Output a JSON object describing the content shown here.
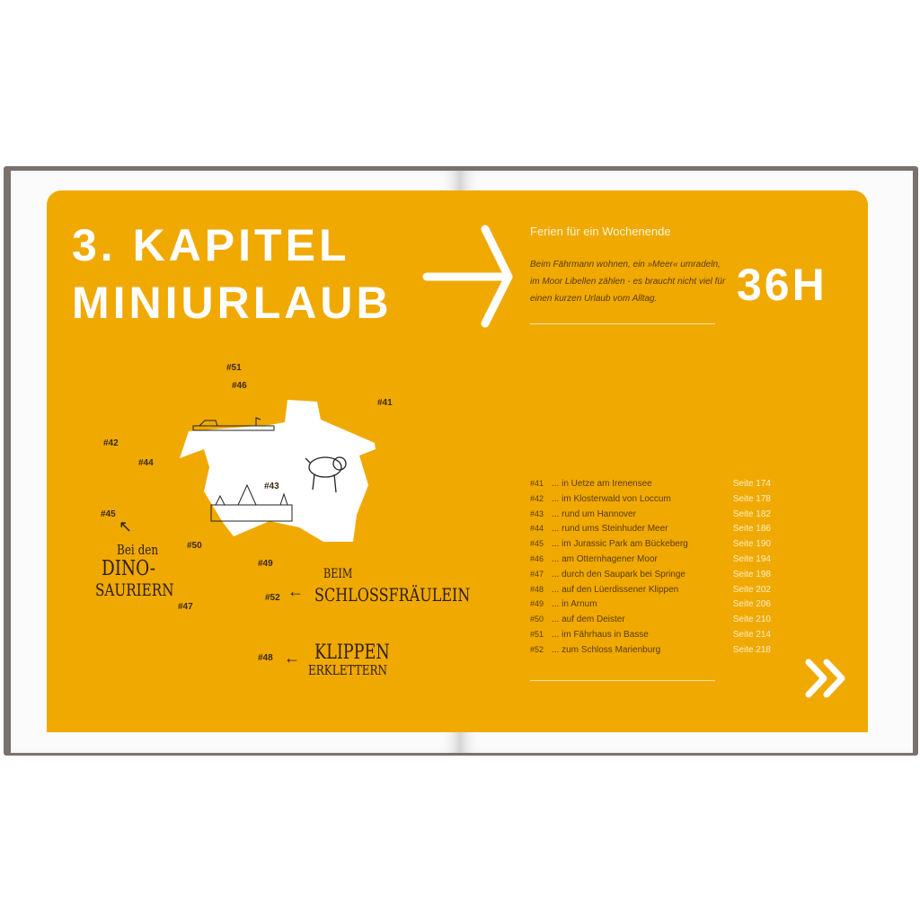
{
  "left_page": {
    "title_line1": "3. KAPITEL",
    "title_line2": "MINIURLAUB",
    "map_labels": [
      "#51",
      "#46",
      "#41",
      "#42",
      "#44",
      "#43",
      "#45",
      "#50",
      "#49",
      "#52",
      "#47",
      "#48"
    ],
    "callouts": {
      "dino_line1": "Bei den",
      "dino_line2": "DINO-",
      "dino_line3": "SAURIERN",
      "schloss_line1": "BEIM",
      "schloss_line2": "SCHLOSSFRÄULEIN",
      "klippen_line1": "KLIPPEN",
      "klippen_line2": "ERKLETTERN"
    }
  },
  "right_page": {
    "subtitle": "Ferien für ein Wochenende",
    "intro": "Beim Fährmann wohnen, ein »Meer« umradeln, im Moor Libellen zählen - es braucht nicht viel für einen kurzen Urlaub vom Alltag.",
    "duration": "36H",
    "toc": [
      {
        "num": "#41",
        "title": "... in Uetze am Irenensee",
        "page": "Seite 174"
      },
      {
        "num": "#42",
        "title": "... im Klosterwald von Loccum",
        "page": "Seite 178"
      },
      {
        "num": "#43",
        "title": "... rund um Hannover",
        "page": "Seite 182"
      },
      {
        "num": "#44",
        "title": "... rund ums Steinhuder Meer",
        "page": "Seite 186"
      },
      {
        "num": "#45",
        "title": "... im Jurassic Park am Bückeberg",
        "page": "Seite 190"
      },
      {
        "num": "#46",
        "title": "... am Otternhagener Moor",
        "page": "Seite 194"
      },
      {
        "num": "#47",
        "title": "... durch den Saupark bei Springe",
        "page": "Seite 198"
      },
      {
        "num": "#48",
        "title": "... auf den Lüerdissener Klippen",
        "page": "Seite 202"
      },
      {
        "num": "#49",
        "title": "... in Arnum",
        "page": "Seite 206"
      },
      {
        "num": "#50",
        "title": "... auf dem Deister",
        "page": "Seite 210"
      },
      {
        "num": "#51",
        "title": "... im Fährhaus in Basse",
        "page": "Seite 214"
      },
      {
        "num": "#52",
        "title": "... zum Schloss Marienburg",
        "page": "Seite 218"
      }
    ],
    "next_icon": "double-chevron-right-icon"
  },
  "colors": {
    "accent": "#f0a900",
    "text_dark": "#5a3c00"
  }
}
